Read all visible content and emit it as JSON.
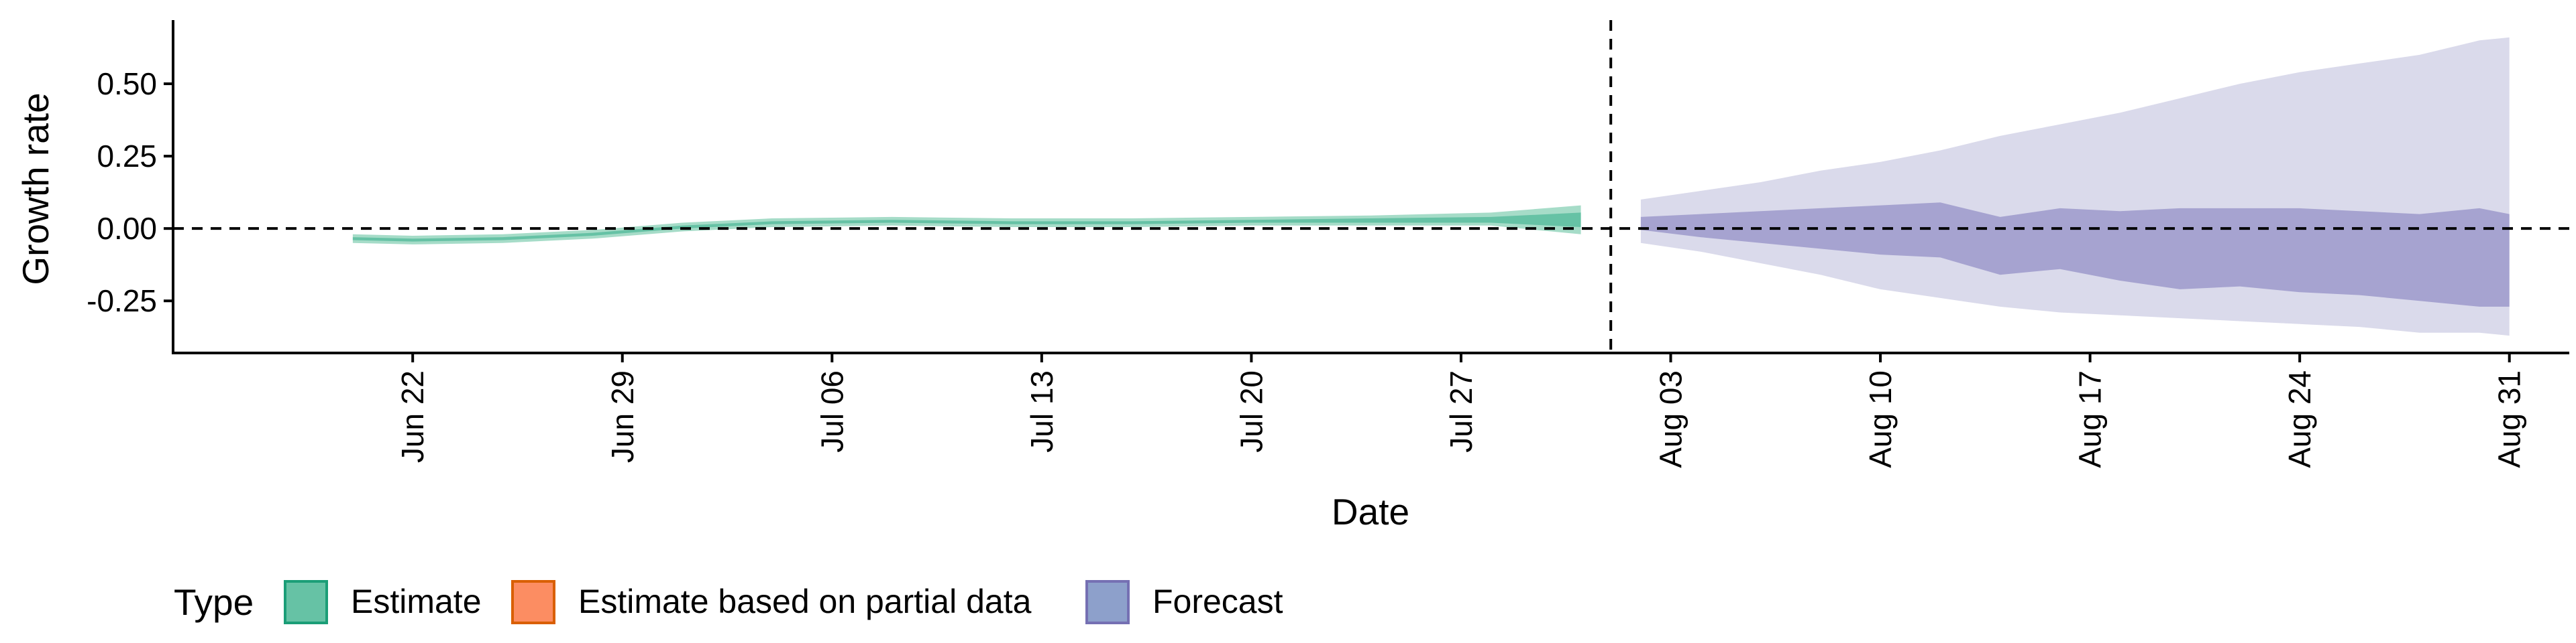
{
  "chart_data": {
    "type": "area",
    "xlabel": "Date",
    "ylabel": "Growth rate",
    "x_range": [
      "2020-06-14",
      "2020-09-02"
    ],
    "ylim": [
      -0.43,
      0.72
    ],
    "y_ticks": [
      0.5,
      0.25,
      0.0,
      -0.25
    ],
    "y_tick_labels": [
      "0.50",
      "0.25",
      "0.00",
      "-0.25"
    ],
    "x_ticks": [
      "2020-06-22",
      "2020-06-29",
      "2020-07-06",
      "2020-07-13",
      "2020-07-20",
      "2020-07-27",
      "2020-08-03",
      "2020-08-10",
      "2020-08-17",
      "2020-08-24",
      "2020-08-31"
    ],
    "x_tick_labels": [
      "Jun 22",
      "Jun 29",
      "Jul 06",
      "Jul 13",
      "Jul 20",
      "Jul 27",
      "Aug 03",
      "Aug 10",
      "Aug 17",
      "Aug 24",
      "Aug 31"
    ],
    "reference_lines": {
      "horizontal_y": 0.0,
      "vertical_x": "2020-08-01"
    },
    "grid": false,
    "legend": {
      "title": "Type",
      "position": "bottom-left",
      "items": [
        {
          "label": "Estimate",
          "fill": "#66c2a5",
          "stroke": "#1b9e77"
        },
        {
          "label": "Estimate based on partial data",
          "fill": "#fc8d62",
          "stroke": "#d95f02"
        },
        {
          "label": "Forecast",
          "fill": "#8da0cb",
          "stroke": "#7570b3"
        }
      ]
    },
    "series": [
      {
        "name": "Estimate",
        "outer_color": "#a6dcc8",
        "inner_color": "#66c2a5",
        "points": [
          {
            "date": "2020-06-20",
            "lo90": -0.05,
            "hi90": -0.02,
            "lo50": -0.04,
            "hi50": -0.03
          },
          {
            "date": "2020-06-22",
            "lo90": -0.055,
            "hi90": -0.025,
            "lo50": -0.045,
            "hi50": -0.035
          },
          {
            "date": "2020-06-25",
            "lo90": -0.05,
            "hi90": -0.02,
            "lo50": -0.04,
            "hi50": -0.03
          },
          {
            "date": "2020-06-28",
            "lo90": -0.035,
            "hi90": -0.005,
            "lo50": -0.025,
            "hi50": -0.015
          },
          {
            "date": "2020-07-01",
            "lo90": -0.01,
            "hi90": 0.02,
            "lo50": 0.0,
            "hi50": 0.01
          },
          {
            "date": "2020-07-04",
            "lo90": 0.005,
            "hi90": 0.035,
            "lo50": 0.015,
            "hi50": 0.025
          },
          {
            "date": "2020-07-08",
            "lo90": 0.01,
            "hi90": 0.04,
            "lo50": 0.02,
            "hi50": 0.03
          },
          {
            "date": "2020-07-12",
            "lo90": 0.005,
            "hi90": 0.035,
            "lo50": 0.015,
            "hi50": 0.025
          },
          {
            "date": "2020-07-16",
            "lo90": 0.005,
            "hi90": 0.035,
            "lo50": 0.015,
            "hi50": 0.025
          },
          {
            "date": "2020-07-20",
            "lo90": 0.01,
            "hi90": 0.04,
            "lo50": 0.02,
            "hi50": 0.03
          },
          {
            "date": "2020-07-24",
            "lo90": 0.01,
            "hi90": 0.045,
            "lo50": 0.02,
            "hi50": 0.035
          },
          {
            "date": "2020-07-28",
            "lo90": 0.01,
            "hi90": 0.055,
            "lo50": 0.02,
            "hi50": 0.04
          },
          {
            "date": "2020-07-31",
            "lo90": -0.02,
            "hi90": 0.08,
            "lo50": 0.005,
            "hi50": 0.055
          }
        ]
      },
      {
        "name": "Forecast",
        "outer_color": "#dadaeb",
        "inner_color": "#a6a3d0",
        "points": [
          {
            "date": "2020-08-02",
            "lo90": -0.05,
            "hi90": 0.1,
            "lo50": -0.005,
            "hi50": 0.04
          },
          {
            "date": "2020-08-04",
            "lo90": -0.08,
            "hi90": 0.13,
            "lo50": -0.03,
            "hi50": 0.05
          },
          {
            "date": "2020-08-06",
            "lo90": -0.12,
            "hi90": 0.16,
            "lo50": -0.05,
            "hi50": 0.06
          },
          {
            "date": "2020-08-08",
            "lo90": -0.16,
            "hi90": 0.2,
            "lo50": -0.07,
            "hi50": 0.07
          },
          {
            "date": "2020-08-10",
            "lo90": -0.21,
            "hi90": 0.23,
            "lo50": -0.09,
            "hi50": 0.08
          },
          {
            "date": "2020-08-12",
            "lo90": -0.24,
            "hi90": 0.27,
            "lo50": -0.1,
            "hi50": 0.09
          },
          {
            "date": "2020-08-14",
            "lo90": -0.27,
            "hi90": 0.32,
            "lo50": -0.16,
            "hi50": 0.04
          },
          {
            "date": "2020-08-16",
            "lo90": -0.29,
            "hi90": 0.36,
            "lo50": -0.14,
            "hi50": 0.07
          },
          {
            "date": "2020-08-18",
            "lo90": -0.3,
            "hi90": 0.4,
            "lo50": -0.18,
            "hi50": 0.06
          },
          {
            "date": "2020-08-20",
            "lo90": -0.31,
            "hi90": 0.45,
            "lo50": -0.21,
            "hi50": 0.07
          },
          {
            "date": "2020-08-22",
            "lo90": -0.32,
            "hi90": 0.5,
            "lo50": -0.2,
            "hi50": 0.07
          },
          {
            "date": "2020-08-24",
            "lo90": -0.33,
            "hi90": 0.54,
            "lo50": -0.22,
            "hi50": 0.07
          },
          {
            "date": "2020-08-26",
            "lo90": -0.34,
            "hi90": 0.57,
            "lo50": -0.23,
            "hi50": 0.06
          },
          {
            "date": "2020-08-28",
            "lo90": -0.36,
            "hi90": 0.6,
            "lo50": -0.25,
            "hi50": 0.05
          },
          {
            "date": "2020-08-30",
            "lo90": -0.36,
            "hi90": 0.65,
            "lo50": -0.27,
            "hi50": 0.07
          },
          {
            "date": "2020-08-31",
            "lo90": -0.37,
            "hi90": 0.66,
            "lo50": -0.27,
            "hi50": 0.05
          }
        ]
      }
    ]
  }
}
